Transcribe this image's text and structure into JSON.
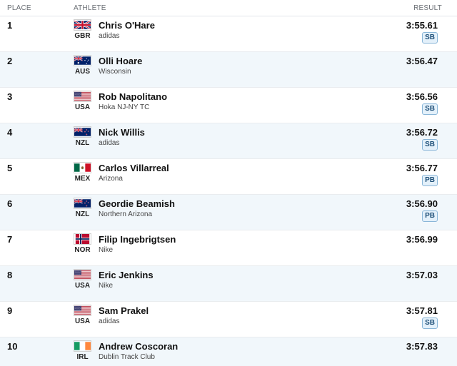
{
  "header": {
    "place": "PLACE",
    "athlete": "ATHLETE",
    "result": "RESULT"
  },
  "rows": [
    {
      "place": "1",
      "country": "GBR",
      "name": "Chris O'Hare",
      "affiliation": "adidas",
      "mark": "3:55.61",
      "badge": "SB",
      "flag_icon": "flag-gbr-icon"
    },
    {
      "place": "2",
      "country": "AUS",
      "name": "Olli Hoare",
      "affiliation": "Wisconsin",
      "mark": "3:56.47",
      "badge": "",
      "flag_icon": "flag-aus-icon"
    },
    {
      "place": "3",
      "country": "USA",
      "name": "Rob Napolitano",
      "affiliation": "Hoka NJ-NY TC",
      "mark": "3:56.56",
      "badge": "SB",
      "flag_icon": "flag-usa-icon"
    },
    {
      "place": "4",
      "country": "NZL",
      "name": "Nick Willis",
      "affiliation": "adidas",
      "mark": "3:56.72",
      "badge": "SB",
      "flag_icon": "flag-nzl-icon"
    },
    {
      "place": "5",
      "country": "MEX",
      "name": "Carlos Villarreal",
      "affiliation": "Arizona",
      "mark": "3:56.77",
      "badge": "PB",
      "flag_icon": "flag-mex-icon"
    },
    {
      "place": "6",
      "country": "NZL",
      "name": "Geordie Beamish",
      "affiliation": "Northern Arizona",
      "mark": "3:56.90",
      "badge": "PB",
      "flag_icon": "flag-nzl-icon"
    },
    {
      "place": "7",
      "country": "NOR",
      "name": "Filip Ingebrigtsen",
      "affiliation": "Nike",
      "mark": "3:56.99",
      "badge": "",
      "flag_icon": "flag-nor-icon"
    },
    {
      "place": "8",
      "country": "USA",
      "name": "Eric Jenkins",
      "affiliation": "Nike",
      "mark": "3:57.03",
      "badge": "",
      "flag_icon": "flag-usa-icon"
    },
    {
      "place": "9",
      "country": "USA",
      "name": "Sam Prakel",
      "affiliation": "adidas",
      "mark": "3:57.81",
      "badge": "SB",
      "flag_icon": "flag-usa-icon"
    },
    {
      "place": "10",
      "country": "IRL",
      "name": "Andrew Coscoran",
      "affiliation": "Dublin Track Club",
      "mark": "3:57.83",
      "badge": "",
      "flag_icon": "flag-irl-icon"
    }
  ],
  "colors": {
    "row_alt": "#f1f7fb",
    "badge_text": "#1d4e77",
    "badge_bg": "#e3f0fa",
    "badge_border": "#8ab6d8"
  }
}
